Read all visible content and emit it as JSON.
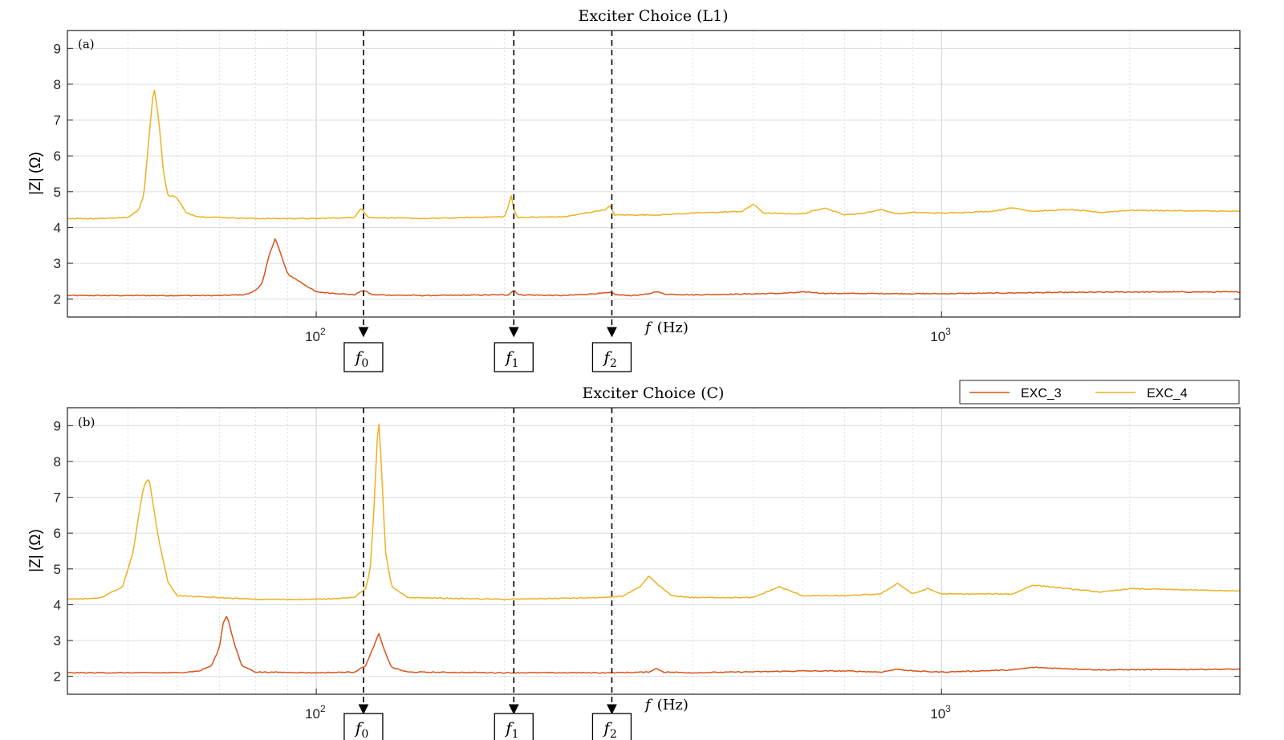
{
  "chart_data": [
    {
      "type": "line",
      "title": "Exciter Choice (L1)",
      "panel_label": "(a)",
      "xlabel_symbol": "f",
      "xlabel_unit": "(Hz)",
      "ylabel": "|Z| (Ω)",
      "x_scale": "log",
      "xlim": [
        40,
        3000
      ],
      "ylim": [
        1.5,
        9.5
      ],
      "yticks": [
        "2",
        "3",
        "4",
        "5",
        "6",
        "7",
        "8",
        "9"
      ],
      "xticks": [
        {
          "base": "10",
          "exp": "2"
        },
        {
          "base": "10",
          "exp": "3"
        }
      ],
      "grid": true,
      "markers": [
        {
          "label": "f",
          "sub": "0",
          "x": 119
        },
        {
          "label": "f",
          "sub": "1",
          "x": 207
        },
        {
          "label": "f",
          "sub": "2",
          "x": 297
        }
      ],
      "series": [
        {
          "name": "EXC_3",
          "color": "#d95319",
          "baseline": 2.1,
          "x": [
            40,
            50,
            60,
            70,
            76,
            78,
            80,
            82,
            84,
            86,
            90,
            100,
            115,
            119,
            123,
            150,
            203,
            207,
            211,
            250,
            297,
            302,
            320,
            340,
            350,
            360,
            400,
            550,
            610,
            650,
            1000,
            1400,
            2000,
            3000
          ],
          "y": [
            2.1,
            2.1,
            2.1,
            2.1,
            2.12,
            2.15,
            2.25,
            2.45,
            3.2,
            3.7,
            2.7,
            2.2,
            2.12,
            2.25,
            2.12,
            2.1,
            2.12,
            2.25,
            2.12,
            2.1,
            2.18,
            2.12,
            2.1,
            2.14,
            2.22,
            2.14,
            2.12,
            2.16,
            2.2,
            2.16,
            2.15,
            2.18,
            2.2,
            2.2
          ]
        },
        {
          "name": "EXC_4",
          "color": "#edb120",
          "baseline": 4.3,
          "x": [
            40,
            45,
            50,
            52,
            53,
            54,
            55,
            56,
            57,
            58,
            59,
            60,
            62,
            65,
            80,
            100,
            115,
            118,
            121,
            150,
            200,
            203,
            205,
            207,
            210,
            250,
            290,
            295,
            300,
            350,
            400,
            480,
            500,
            520,
            600,
            650,
            700,
            750,
            800,
            850,
            900,
            1000,
            1200,
            1300,
            1400,
            1600,
            1800,
            2000,
            3000
          ],
          "y": [
            4.25,
            4.25,
            4.28,
            4.5,
            4.9,
            6.5,
            7.95,
            7.0,
            5.5,
            4.85,
            4.9,
            4.8,
            4.4,
            4.3,
            4.25,
            4.25,
            4.28,
            4.55,
            4.28,
            4.25,
            4.3,
            4.6,
            4.9,
            4.5,
            4.28,
            4.3,
            4.5,
            4.6,
            4.35,
            4.35,
            4.4,
            4.45,
            4.65,
            4.4,
            4.38,
            4.55,
            4.35,
            4.4,
            4.5,
            4.38,
            4.42,
            4.4,
            4.45,
            4.55,
            4.45,
            4.5,
            4.42,
            4.48,
            4.45
          ]
        }
      ]
    },
    {
      "type": "line",
      "title": "Exciter Choice (C)",
      "panel_label": "(b)",
      "xlabel_symbol": "f",
      "xlabel_unit": "(Hz)",
      "ylabel": "|Z| (Ω)",
      "x_scale": "log",
      "xlim": [
        40,
        3000
      ],
      "ylim": [
        1.5,
        9.5
      ],
      "yticks": [
        "2",
        "3",
        "4",
        "5",
        "6",
        "7",
        "8",
        "9"
      ],
      "xticks": [
        {
          "base": "10",
          "exp": "2"
        },
        {
          "base": "10",
          "exp": "3"
        }
      ],
      "grid": true,
      "legend": {
        "position": "top-right",
        "entries": [
          "EXC_3",
          "EXC_4"
        ]
      },
      "markers": [
        {
          "label": "f",
          "sub": "0",
          "x": 119
        },
        {
          "label": "f",
          "sub": "1",
          "x": 207
        },
        {
          "label": "f",
          "sub": "2",
          "x": 297
        }
      ],
      "series": [
        {
          "name": "EXC_3",
          "color": "#d95319",
          "baseline": 2.1,
          "x": [
            40,
            60,
            65,
            68,
            70,
            71,
            72,
            74,
            76,
            80,
            100,
            115,
            120,
            124,
            126,
            128,
            132,
            140,
            200,
            300,
            340,
            350,
            360,
            400,
            600,
            700,
            800,
            850,
            900,
            1000,
            1300,
            1400,
            1800,
            3000
          ],
          "y": [
            2.1,
            2.1,
            2.15,
            2.3,
            2.8,
            3.5,
            3.7,
            2.9,
            2.3,
            2.12,
            2.1,
            2.12,
            2.3,
            2.9,
            3.2,
            2.8,
            2.25,
            2.12,
            2.1,
            2.1,
            2.12,
            2.22,
            2.12,
            2.1,
            2.15,
            2.15,
            2.12,
            2.2,
            2.15,
            2.12,
            2.18,
            2.25,
            2.18,
            2.2
          ]
        },
        {
          "name": "EXC_4",
          "color": "#edb120",
          "baseline": 4.15,
          "x": [
            40,
            45,
            49,
            51,
            52,
            53,
            54,
            56,
            58,
            60,
            80,
            100,
            115,
            120,
            122,
            124,
            125,
            126,
            127,
            129,
            132,
            140,
            200,
            290,
            310,
            330,
            340,
            350,
            370,
            400,
            500,
            550,
            600,
            700,
            800,
            850,
            900,
            950,
            1000,
            1300,
            1400,
            1800,
            2000,
            3000
          ],
          "y": [
            4.15,
            4.18,
            4.5,
            5.5,
            6.5,
            7.3,
            7.55,
            5.8,
            4.6,
            4.25,
            4.15,
            4.15,
            4.2,
            4.45,
            5.0,
            7.0,
            8.5,
            9.05,
            8.0,
            5.5,
            4.5,
            4.2,
            4.15,
            4.2,
            4.25,
            4.5,
            4.8,
            4.6,
            4.25,
            4.2,
            4.2,
            4.5,
            4.25,
            4.25,
            4.3,
            4.6,
            4.3,
            4.45,
            4.3,
            4.3,
            4.55,
            4.35,
            4.45,
            4.38
          ]
        }
      ]
    }
  ]
}
